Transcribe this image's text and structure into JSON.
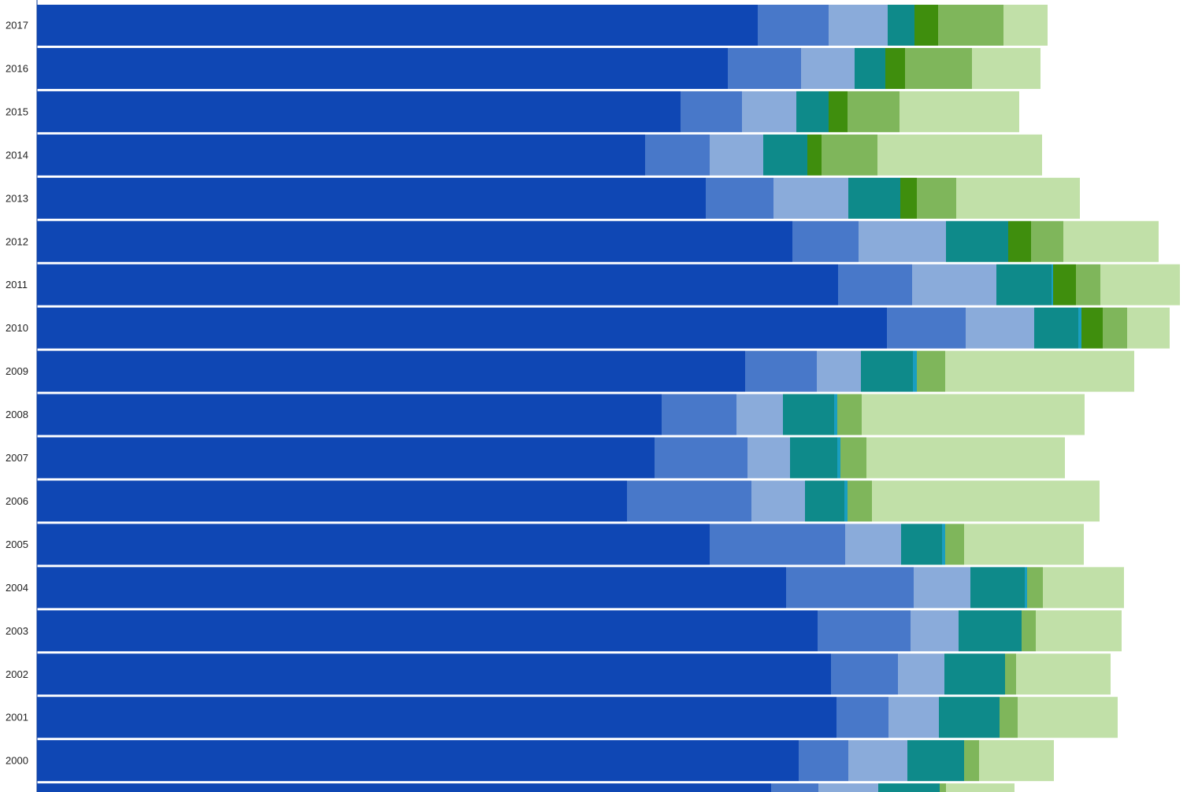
{
  "chart_data": {
    "type": "bar",
    "orientation": "horizontal",
    "stacked": true,
    "title": "",
    "xlabel": "",
    "ylabel": "",
    "grid": false,
    "legend": "none",
    "categories": [
      "2017",
      "2016",
      "2015",
      "2014",
      "2013",
      "2012",
      "2011",
      "2010",
      "2009",
      "2008",
      "2007",
      "2006",
      "2005",
      "2004",
      "2003",
      "2002",
      "2001",
      "2000",
      ""
    ],
    "series": [
      {
        "color": "#0f47b4",
        "values": [
          915,
          877,
          817,
          772,
          849,
          959,
          1017,
          1079,
          899,
          793,
          784,
          749,
          854,
          951,
          991,
          1008,
          1015,
          967,
          932
        ]
      },
      {
        "color": "#4878c9",
        "values": [
          90,
          93,
          78,
          82,
          86,
          84,
          94,
          100,
          91,
          95,
          118,
          158,
          172,
          162,
          118,
          85,
          66,
          63,
          60
        ]
      },
      {
        "color": "#8aabda",
        "values": [
          75,
          68,
          69,
          68,
          95,
          111,
          107,
          87,
          56,
          59,
          54,
          68,
          71,
          72,
          61,
          59,
          64,
          75,
          76
        ]
      },
      {
        "color": "#0e8a8a",
        "values": [
          34,
          39,
          41,
          56,
          66,
          79,
          70,
          56,
          66,
          65,
          60,
          50,
          52,
          69,
          80,
          77,
          77,
          72,
          78
        ]
      },
      {
        "color": "#1a9ec0",
        "values": [
          0,
          0,
          0,
          0,
          0,
          0,
          2,
          4,
          5,
          4,
          4,
          4,
          4,
          3,
          0,
          0,
          0,
          0,
          0
        ]
      },
      {
        "color": "#3f8e0d",
        "values": [
          30,
          25,
          24,
          18,
          21,
          29,
          29,
          27,
          0,
          0,
          0,
          0,
          0,
          0,
          0,
          0,
          0,
          0,
          0
        ]
      },
      {
        "color": "#7fb65b",
        "values": [
          83,
          85,
          66,
          71,
          50,
          41,
          31,
          31,
          36,
          31,
          33,
          31,
          24,
          20,
          18,
          14,
          23,
          19,
          8
        ]
      },
      {
        "color": "#c1e0a8",
        "values": [
          56,
          87,
          152,
          209,
          157,
          121,
          101,
          54,
          240,
          283,
          252,
          289,
          152,
          103,
          109,
          120,
          127,
          95,
          87
        ]
      }
    ]
  }
}
